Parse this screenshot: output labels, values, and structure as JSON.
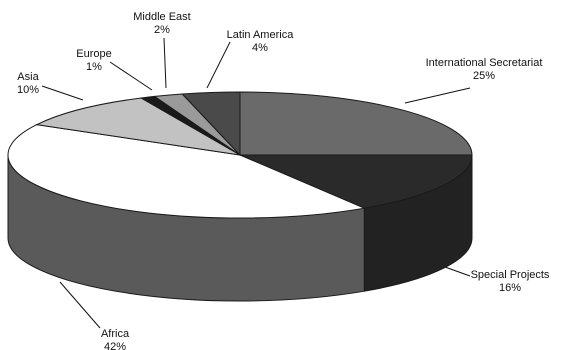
{
  "chart_data": {
    "type": "pie",
    "title": "",
    "slices": [
      {
        "label": "International Secretariat",
        "value_label": "25%",
        "value": 25,
        "color": "#6a6a6a"
      },
      {
        "label": "Special Projects",
        "value_label": "16%",
        "value": 16,
        "color": "#2a2a2a"
      },
      {
        "label": "Africa",
        "value_label": "42%",
        "value": 42,
        "color": "#ffffff"
      },
      {
        "label": "Asia",
        "value_label": "10%",
        "value": 10,
        "color": "#c2c2c2"
      },
      {
        "label": "Europe",
        "value_label": "1%",
        "value": 1,
        "color": "#1a1a1a"
      },
      {
        "label": "Middle East",
        "value_label": "2%",
        "value": 2,
        "color": "#9a9a9a"
      },
      {
        "label": "Latin America",
        "value_label": "4%",
        "value": 4,
        "color": "#4a4a4a"
      }
    ],
    "side_color": "#5a5a5a",
    "edge_color": "#1a1a1a"
  }
}
